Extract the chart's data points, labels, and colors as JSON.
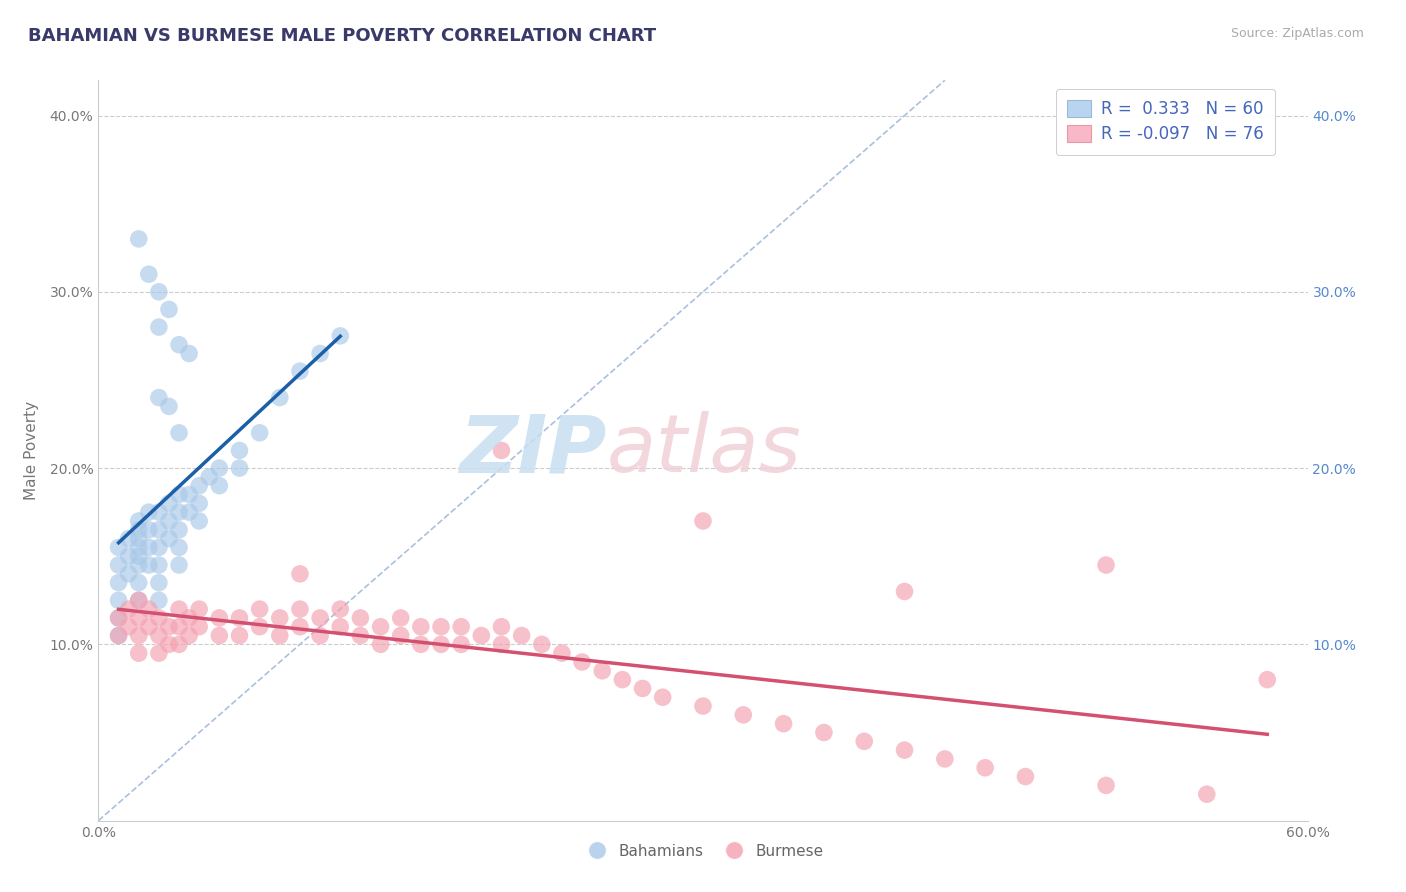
{
  "title": "BAHAMIAN VS BURMESE MALE POVERTY CORRELATION CHART",
  "source": "Source: ZipAtlas.com",
  "ylabel": "Male Poverty",
  "xlim": [
    0.0,
    0.6
  ],
  "ylim": [
    0.0,
    0.42
  ],
  "legend_R_blue": "0.333",
  "legend_N_blue": "60",
  "legend_R_pink": "-0.097",
  "legend_N_pink": "76",
  "blue_color": "#a8c8e8",
  "pink_color": "#f4a0b0",
  "blue_line_color": "#1a5fa8",
  "pink_line_color": "#d45070",
  "diag_line_color": "#aac0dd",
  "background_color": "#ffffff",
  "grid_color": "#cccccc",
  "bahamian_x": [
    0.01,
    0.01,
    0.01,
    0.01,
    0.01,
    0.01,
    0.015,
    0.015,
    0.015,
    0.02,
    0.02,
    0.02,
    0.02,
    0.02,
    0.02,
    0.02,
    0.02,
    0.025,
    0.025,
    0.025,
    0.025,
    0.03,
    0.03,
    0.03,
    0.03,
    0.03,
    0.03,
    0.035,
    0.035,
    0.035,
    0.04,
    0.04,
    0.04,
    0.04,
    0.04,
    0.045,
    0.045,
    0.05,
    0.05,
    0.05,
    0.055,
    0.06,
    0.06,
    0.07,
    0.07,
    0.08,
    0.09,
    0.1,
    0.11,
    0.12,
    0.02,
    0.025,
    0.03,
    0.035,
    0.03,
    0.04,
    0.045,
    0.03,
    0.035,
    0.04
  ],
  "bahamian_y": [
    0.155,
    0.145,
    0.135,
    0.125,
    0.115,
    0.105,
    0.16,
    0.15,
    0.14,
    0.17,
    0.165,
    0.16,
    0.155,
    0.15,
    0.145,
    0.135,
    0.125,
    0.175,
    0.165,
    0.155,
    0.145,
    0.175,
    0.165,
    0.155,
    0.145,
    0.135,
    0.125,
    0.18,
    0.17,
    0.16,
    0.185,
    0.175,
    0.165,
    0.155,
    0.145,
    0.185,
    0.175,
    0.19,
    0.18,
    0.17,
    0.195,
    0.2,
    0.19,
    0.21,
    0.2,
    0.22,
    0.24,
    0.255,
    0.265,
    0.275,
    0.33,
    0.31,
    0.3,
    0.29,
    0.28,
    0.27,
    0.265,
    0.24,
    0.235,
    0.22
  ],
  "burmese_x": [
    0.01,
    0.01,
    0.015,
    0.015,
    0.02,
    0.02,
    0.02,
    0.02,
    0.025,
    0.025,
    0.03,
    0.03,
    0.03,
    0.035,
    0.035,
    0.04,
    0.04,
    0.04,
    0.045,
    0.045,
    0.05,
    0.05,
    0.06,
    0.06,
    0.07,
    0.07,
    0.08,
    0.08,
    0.09,
    0.09,
    0.1,
    0.1,
    0.11,
    0.11,
    0.12,
    0.12,
    0.13,
    0.13,
    0.14,
    0.14,
    0.15,
    0.15,
    0.16,
    0.16,
    0.17,
    0.17,
    0.18,
    0.18,
    0.19,
    0.2,
    0.2,
    0.21,
    0.22,
    0.23,
    0.24,
    0.25,
    0.26,
    0.27,
    0.28,
    0.3,
    0.32,
    0.34,
    0.36,
    0.38,
    0.4,
    0.42,
    0.44,
    0.46,
    0.5,
    0.55,
    0.1,
    0.2,
    0.3,
    0.4,
    0.5,
    0.58
  ],
  "burmese_y": [
    0.115,
    0.105,
    0.12,
    0.11,
    0.125,
    0.115,
    0.105,
    0.095,
    0.12,
    0.11,
    0.115,
    0.105,
    0.095,
    0.11,
    0.1,
    0.12,
    0.11,
    0.1,
    0.115,
    0.105,
    0.12,
    0.11,
    0.115,
    0.105,
    0.115,
    0.105,
    0.12,
    0.11,
    0.115,
    0.105,
    0.12,
    0.11,
    0.115,
    0.105,
    0.12,
    0.11,
    0.115,
    0.105,
    0.11,
    0.1,
    0.115,
    0.105,
    0.11,
    0.1,
    0.11,
    0.1,
    0.11,
    0.1,
    0.105,
    0.11,
    0.1,
    0.105,
    0.1,
    0.095,
    0.09,
    0.085,
    0.08,
    0.075,
    0.07,
    0.065,
    0.06,
    0.055,
    0.05,
    0.045,
    0.04,
    0.035,
    0.03,
    0.025,
    0.02,
    0.015,
    0.14,
    0.21,
    0.17,
    0.13,
    0.145,
    0.08
  ]
}
